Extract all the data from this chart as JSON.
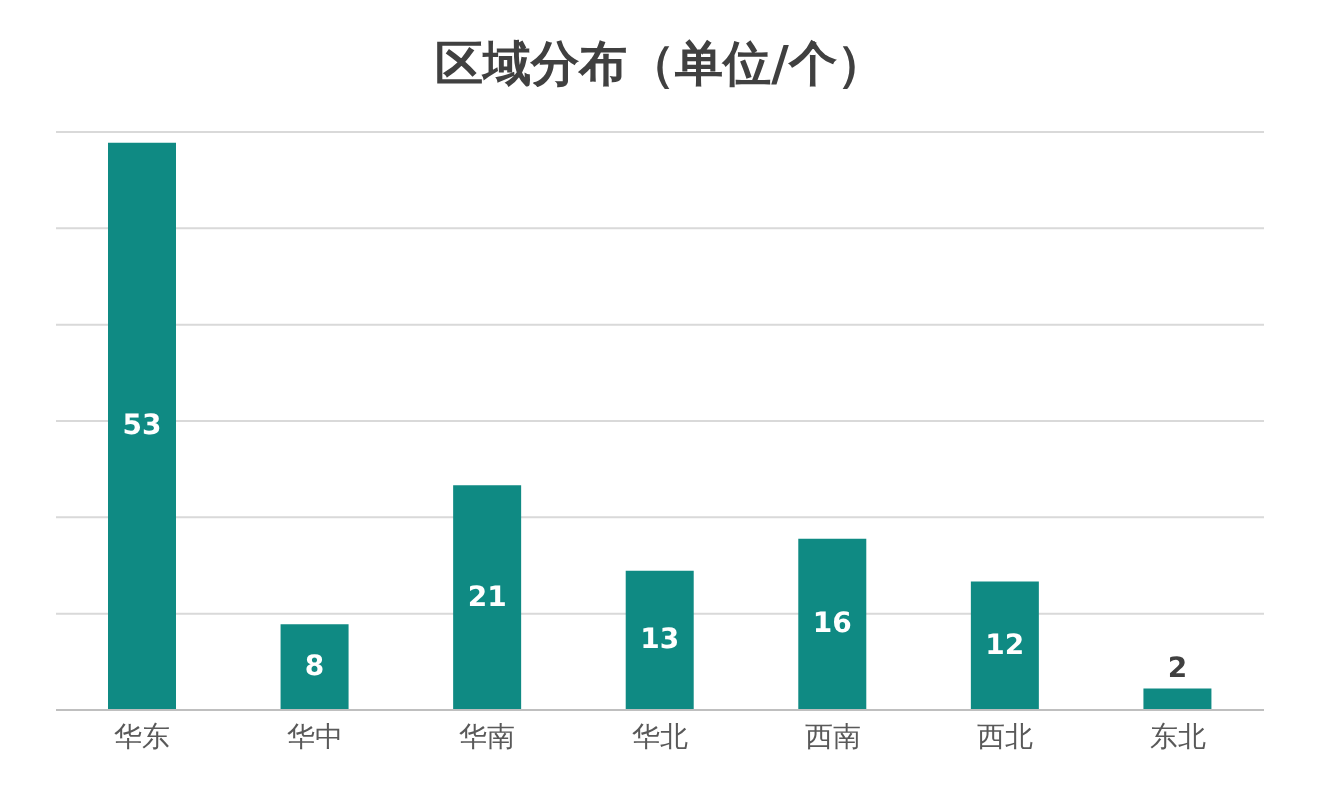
{
  "chart_data": {
    "type": "bar",
    "title": "区域分布（单位/个）",
    "categories": [
      "华东",
      "华中",
      "华南",
      "华北",
      "西南",
      "西北",
      "东北"
    ],
    "values": [
      53,
      8,
      21,
      13,
      16,
      12,
      2
    ],
    "color": "#0f8a83",
    "grid": "y",
    "tick_labels": "x",
    "data_labels": true
  }
}
